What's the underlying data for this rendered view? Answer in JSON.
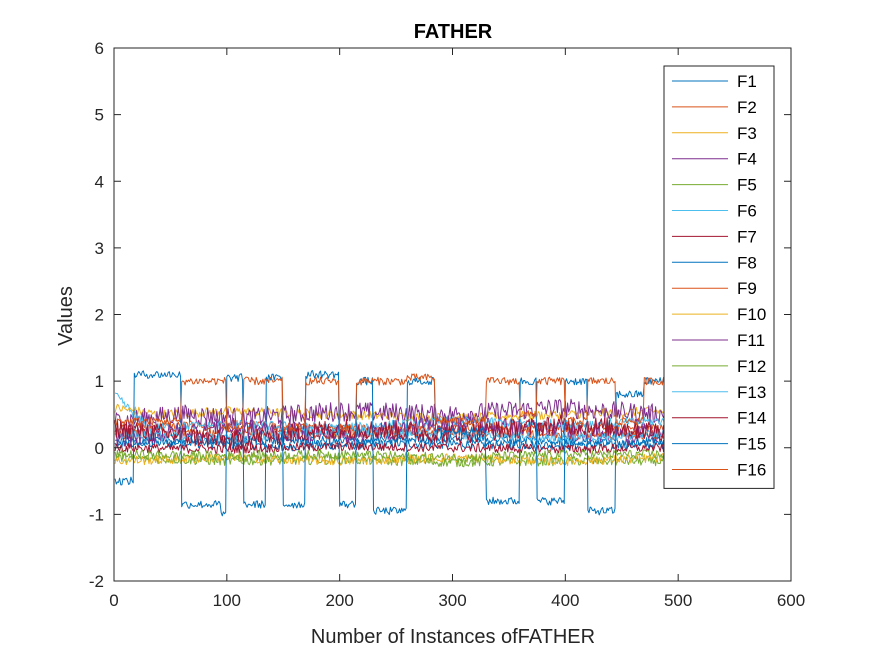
{
  "chart_data": {
    "type": "line",
    "title": "FATHER",
    "xlabel": "Number of Instances ofFATHER",
    "ylabel": "Values",
    "xlim": [
      0,
      600
    ],
    "ylim": [
      -2,
      6
    ],
    "xticks": [
      "0",
      "100",
      "200",
      "300",
      "400",
      "500",
      "600"
    ],
    "yticks": [
      "-2",
      "-1",
      "0",
      "1",
      "2",
      "3",
      "4",
      "5",
      "6"
    ],
    "legend_position": "top-right",
    "grid": false,
    "n_points": 488,
    "series": [
      {
        "name": "F1",
        "color": "#0072BD",
        "segments": [
          [
            0,
            0.05
          ],
          [
            60,
            0.08
          ],
          [
            150,
            0.02
          ],
          [
            260,
            0.06
          ],
          [
            380,
            0.04
          ],
          [
            488,
            0.05
          ]
        ]
      },
      {
        "name": "F2",
        "color": "#D95319",
        "segments": [
          [
            0,
            0.3
          ],
          [
            100,
            0.35
          ],
          [
            200,
            0.28
          ],
          [
            300,
            0.32
          ],
          [
            400,
            0.3
          ],
          [
            488,
            0.3
          ]
        ]
      },
      {
        "name": "F3",
        "color": "#EDB120",
        "segments": [
          [
            0,
            0.6
          ],
          [
            40,
            0.5
          ],
          [
            100,
            0.55
          ],
          [
            200,
            0.5
          ],
          [
            300,
            0.45
          ],
          [
            400,
            0.5
          ],
          [
            488,
            0.55
          ]
        ]
      },
      {
        "name": "F4",
        "color": "#7E2F8E",
        "segments": [
          [
            0,
            0.4
          ],
          [
            60,
            0.5
          ],
          [
            120,
            0.45
          ],
          [
            200,
            0.55
          ],
          [
            300,
            0.5
          ],
          [
            390,
            0.6
          ],
          [
            488,
            0.5
          ]
        ]
      },
      {
        "name": "F5",
        "color": "#77AC30",
        "segments": [
          [
            0,
            -0.15
          ],
          [
            100,
            -0.2
          ],
          [
            200,
            -0.18
          ],
          [
            300,
            -0.22
          ],
          [
            400,
            -0.2
          ],
          [
            488,
            -0.2
          ]
        ]
      },
      {
        "name": "F6",
        "color": "#4DBEEE",
        "segments": [
          [
            0,
            0.8
          ],
          [
            30,
            0.3
          ],
          [
            100,
            0.35
          ],
          [
            200,
            0.3
          ],
          [
            300,
            0.4
          ],
          [
            400,
            0.35
          ],
          [
            488,
            0.4
          ]
        ]
      },
      {
        "name": "F7",
        "color": "#A2142F",
        "segments": [
          [
            0,
            0.0
          ],
          [
            100,
            -0.02
          ],
          [
            200,
            0.02
          ],
          [
            300,
            0.0
          ],
          [
            400,
            -0.02
          ],
          [
            488,
            0.0
          ]
        ]
      },
      {
        "name": "F8",
        "color": "#0072BD",
        "segments": [
          [
            0,
            0.1
          ],
          [
            100,
            0.12
          ],
          [
            200,
            0.1
          ],
          [
            300,
            0.15
          ],
          [
            400,
            0.1
          ],
          [
            488,
            0.1
          ]
        ]
      },
      {
        "name": "F9",
        "color": "#D95319",
        "segments": [
          [
            0,
            0.2
          ],
          [
            100,
            0.25
          ],
          [
            200,
            0.2
          ],
          [
            300,
            0.25
          ],
          [
            400,
            0.2
          ],
          [
            488,
            0.2
          ]
        ]
      },
      {
        "name": "F10",
        "color": "#EDB120",
        "segments": [
          [
            0,
            -0.2
          ],
          [
            100,
            -0.15
          ],
          [
            200,
            -0.2
          ],
          [
            300,
            -0.15
          ],
          [
            400,
            -0.2
          ],
          [
            488,
            -0.15
          ]
        ]
      },
      {
        "name": "F11",
        "color": "#7E2F8E",
        "segments": [
          [
            0,
            0.15
          ],
          [
            100,
            0.3
          ],
          [
            200,
            0.2
          ],
          [
            300,
            0.35
          ],
          [
            400,
            0.25
          ],
          [
            488,
            0.2
          ]
        ]
      },
      {
        "name": "F12",
        "color": "#77AC30",
        "segments": [
          [
            0,
            -0.1
          ],
          [
            100,
            -0.12
          ],
          [
            200,
            -0.1
          ],
          [
            300,
            -0.15
          ],
          [
            400,
            -0.1
          ],
          [
            488,
            -0.1
          ]
        ]
      },
      {
        "name": "F13",
        "color": "#4DBEEE",
        "segments": [
          [
            0,
            0.2
          ],
          [
            100,
            0.15
          ],
          [
            200,
            0.25
          ],
          [
            300,
            0.2
          ],
          [
            400,
            0.15
          ],
          [
            488,
            0.2
          ]
        ]
      },
      {
        "name": "F14",
        "color": "#A2142F",
        "segments": [
          [
            0,
            0.3
          ],
          [
            100,
            0.1
          ],
          [
            200,
            0.3
          ],
          [
            300,
            0.2
          ],
          [
            400,
            0.35
          ],
          [
            488,
            0.25
          ]
        ]
      },
      {
        "name": "F15",
        "color": "#0072BD",
        "blocks": [
          [
            0,
            18,
            -0.5
          ],
          [
            18,
            60,
            1.1
          ],
          [
            60,
            95,
            -0.85
          ],
          [
            95,
            100,
            -1.0
          ],
          [
            100,
            115,
            1.05
          ],
          [
            115,
            135,
            -0.85
          ],
          [
            135,
            150,
            1.05
          ],
          [
            150,
            170,
            -0.85
          ],
          [
            170,
            200,
            1.1
          ],
          [
            200,
            215,
            -0.85
          ],
          [
            215,
            230,
            1.0
          ],
          [
            230,
            260,
            -0.95
          ],
          [
            260,
            285,
            1.0
          ],
          [
            285,
            330,
            0.25
          ],
          [
            330,
            360,
            -0.8
          ],
          [
            360,
            375,
            1.0
          ],
          [
            375,
            400,
            -0.8
          ],
          [
            400,
            420,
            1.0
          ],
          [
            420,
            445,
            -0.95
          ],
          [
            445,
            470,
            0.8
          ],
          [
            470,
            488,
            1.0
          ]
        ]
      },
      {
        "name": "F16",
        "color": "#D95319",
        "blocks": [
          [
            0,
            60,
            0.4
          ],
          [
            60,
            100,
            1.0
          ],
          [
            100,
            115,
            0.3
          ],
          [
            115,
            150,
            1.0
          ],
          [
            150,
            170,
            0.3
          ],
          [
            170,
            200,
            1.0
          ],
          [
            200,
            215,
            0.3
          ],
          [
            215,
            260,
            1.0
          ],
          [
            260,
            285,
            1.05
          ],
          [
            285,
            330,
            0.4
          ],
          [
            330,
            360,
            1.0
          ],
          [
            360,
            375,
            0.5
          ],
          [
            375,
            400,
            1.0
          ],
          [
            400,
            420,
            0.4
          ],
          [
            420,
            445,
            1.0
          ],
          [
            445,
            470,
            0.4
          ],
          [
            470,
            488,
            1.0
          ]
        ]
      }
    ]
  }
}
